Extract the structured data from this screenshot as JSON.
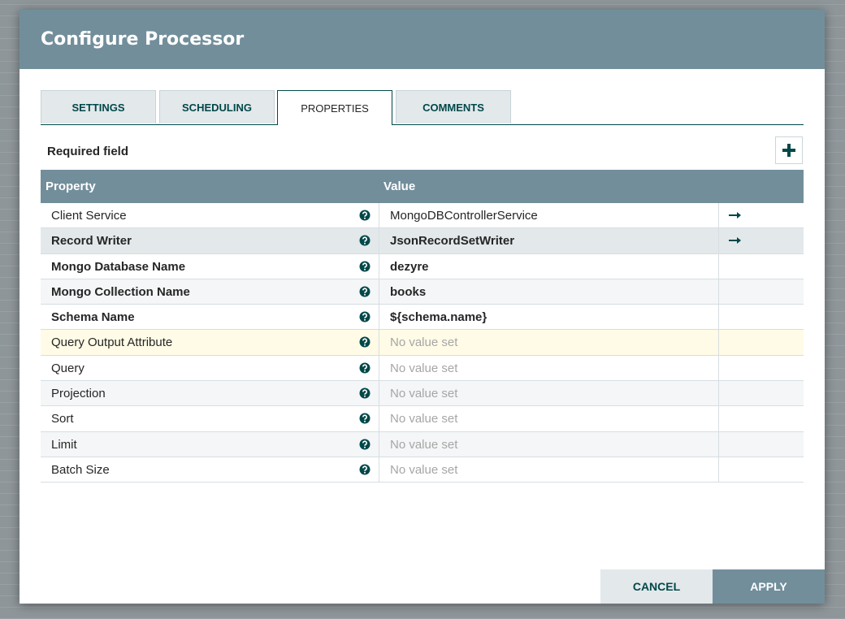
{
  "dialog": {
    "title": "Configure Processor",
    "tabs": [
      {
        "label": "SETTINGS"
      },
      {
        "label": "SCHEDULING"
      },
      {
        "label": "PROPERTIES",
        "active": true
      },
      {
        "label": "COMMENTS"
      }
    ],
    "required_note": "Required field",
    "table": {
      "headers": [
        "Property",
        "Value"
      ],
      "rows": [
        {
          "name": "Client Service",
          "value": "MongoDBControllerService",
          "link": true
        },
        {
          "name": "Record Writer",
          "value": "JsonRecordSetWriter",
          "required": true,
          "link": true,
          "hover": true
        },
        {
          "name": "Mongo Database Name",
          "value": "dezyre",
          "required": true
        },
        {
          "name": "Mongo Collection Name",
          "value": "books",
          "required": true
        },
        {
          "name": "Schema Name",
          "value": "${schema.name}",
          "required": true
        },
        {
          "name": "Query Output Attribute",
          "value": "No value set",
          "unset": true,
          "selected": true
        },
        {
          "name": "Query",
          "value": "No value set",
          "unset": true
        },
        {
          "name": "Projection",
          "value": "No value set",
          "unset": true
        },
        {
          "name": "Sort",
          "value": "No value set",
          "unset": true
        },
        {
          "name": "Limit",
          "value": "No value set",
          "unset": true
        },
        {
          "name": "Batch Size",
          "value": "No value set",
          "unset": true
        }
      ]
    },
    "buttons": [
      "CANCEL",
      "APPLY"
    ]
  }
}
